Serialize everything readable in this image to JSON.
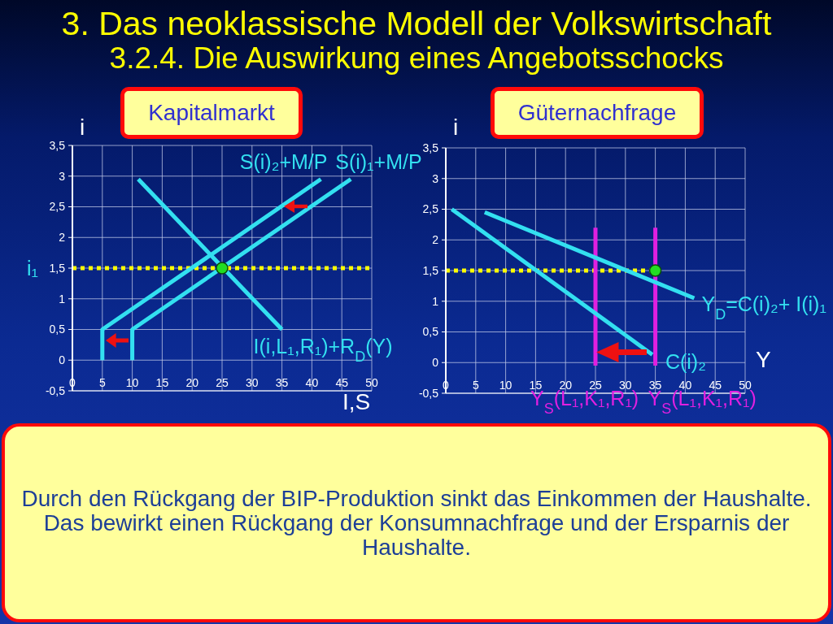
{
  "chart_data": [
    {
      "type": "line",
      "title": "3. Das neoklassische Modell der Volkswirtschaft",
      "subtitle": "3.2.4. Die Auswirkung eines Angebotsschocks",
      "annotations": [
        "Kapitalmarkt"
      ],
      "xlabel": "I,S",
      "ylabel": "i",
      "xlim": [
        0,
        50
      ],
      "xticks": [
        0,
        5,
        10,
        15,
        20,
        25,
        30,
        35,
        40,
        45,
        50
      ],
      "ylim": [
        -0.5,
        3.5
      ],
      "yticks": [
        {
          "value": -0.5,
          "label": "-0,5"
        },
        0,
        {
          "value": 0.5,
          "label": "0,5"
        },
        1,
        {
          "value": 1.5,
          "label": "1,5"
        },
        2,
        {
          "value": 2.5,
          "label": "2,5"
        },
        3,
        {
          "value": 3.5,
          "label": "3,5"
        }
      ],
      "grid": true,
      "marker": "none",
      "series": [
        {
          "name": "I(i,L₁,R₁)+R$_{D}$(Y)",
          "color": "#33e0f0",
          "x": [
            11,
            35
          ],
          "values": [
            2.95,
            0.5
          ]
        },
        {
          "name": "S(i)₂+M/P",
          "color": "#33e0f0",
          "x": [
            5,
            5,
            41.5
          ],
          "values": [
            0,
            0.5,
            2.95
          ]
        },
        {
          "name": "S(i)₁+M/P",
          "color": "#33e0f0",
          "x": [
            10,
            10,
            46.5
          ],
          "values": [
            0,
            0.5,
            2.95
          ]
        },
        {
          "type": "scatter",
          "marker": "circle",
          "color": "#22dd22",
          "x": [
            25
          ],
          "values": [
            1.5
          ]
        }
      ],
      "ref_lines": [
        {
          "axis": "y",
          "value": 1.5,
          "label": "i₁",
          "color": "#ffff00",
          "line_style": "dotted"
        }
      ]
    },
    {
      "type": "line",
      "annotations": [
        "Güternachfrage",
        "Durch den Rückgang der BIP-Produktion sinkt das Einkommen der Haushalte. Das bewirkt einen Rückgang der Konsumnachfrage und der Ersparnis der Haushalte."
      ],
      "xlabel": "Y",
      "ylabel": "i",
      "xlim": [
        0,
        50
      ],
      "xticks": [
        0,
        5,
        10,
        15,
        20,
        25,
        30,
        35,
        40,
        45,
        50
      ],
      "ylim": [
        -0.5,
        3.5
      ],
      "yticks": [
        {
          "value": -0.5,
          "label": "-0,5"
        },
        0,
        {
          "value": 0.5,
          "label": "0,5"
        },
        1,
        {
          "value": 1.5,
          "label": "1,5"
        },
        2,
        {
          "value": 2.5,
          "label": "2,5"
        },
        3,
        {
          "value": 3.5,
          "label": "3,5"
        }
      ],
      "grid": true,
      "marker": "none",
      "series": [
        {
          "color": "#ffff00",
          "line_style": "dotted",
          "x": [
            0,
            35
          ],
          "values": [
            1.5,
            1.5
          ]
        },
        {
          "name": "Y$_{S}$(L₁,K₁,R₁)",
          "color": "#e020e0",
          "x": [
            25,
            25
          ],
          "values": [
            -0.05,
            2.2
          ]
        },
        {
          "name": "Y$_{S}$(L₁,K₁,R₁)",
          "color": "#e020e0",
          "x": [
            35,
            35
          ],
          "values": [
            -0.05,
            2.2
          ]
        },
        {
          "name": "Y$_{D}$=C(i)₂+ I(i)₁",
          "color": "#33e0f0",
          "x": [
            6.5,
            41.5
          ],
          "values": [
            2.45,
            1.05
          ]
        },
        {
          "name": "C(i)₂",
          "color": "#33e0f0",
          "x": [
            1,
            34.5
          ],
          "values": [
            2.5,
            0.13
          ]
        },
        {
          "type": "scatter",
          "marker": "circle",
          "color": "#22dd22",
          "x": [
            35
          ],
          "values": [
            1.5
          ]
        }
      ]
    }
  ]
}
